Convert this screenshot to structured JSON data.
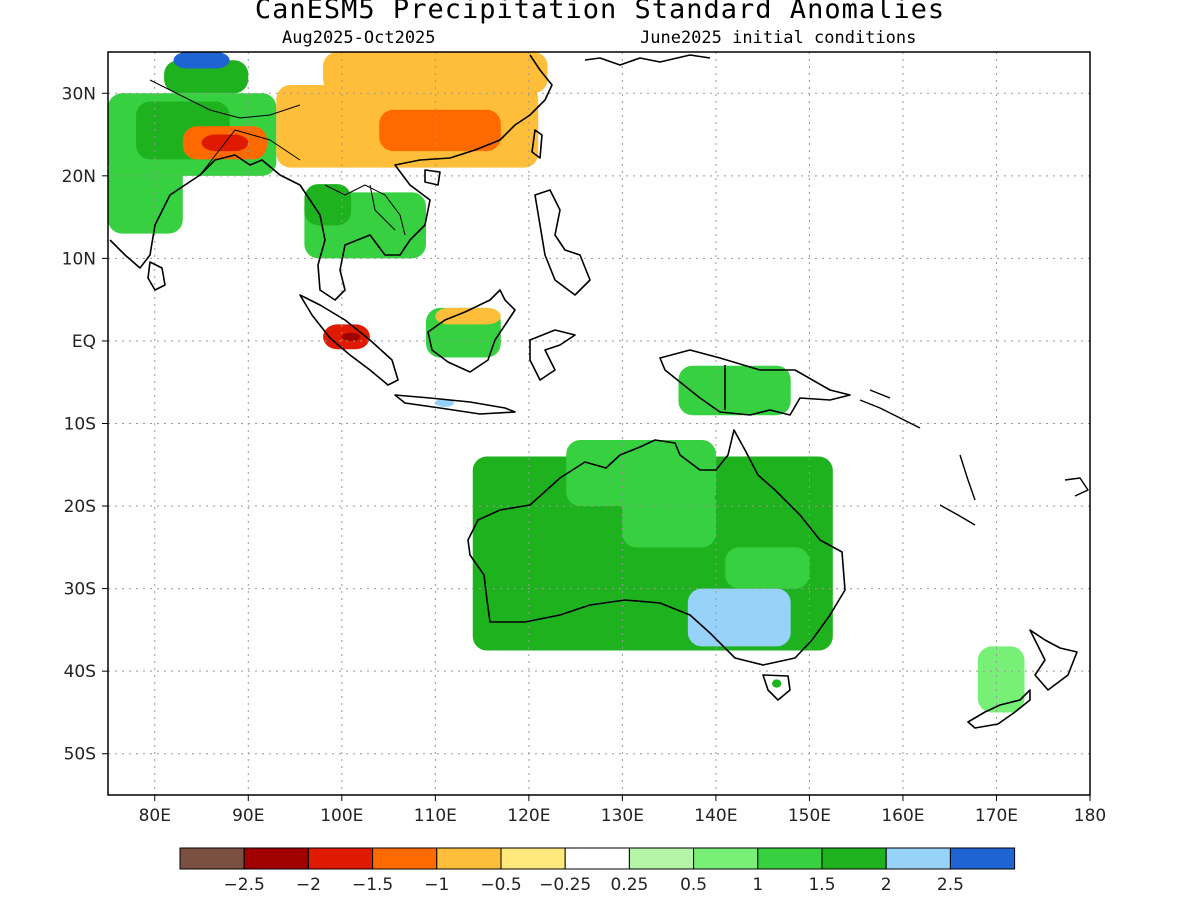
{
  "header": {
    "title": "CanESM5 Precipitation Standard Anomalies",
    "period": "Aug2025-Oct2025",
    "init": "June2025 initial conditions"
  },
  "axes": {
    "lon_range": [
      75,
      180
    ],
    "lat_range": [
      -55,
      35
    ],
    "lon_ticks": [
      80,
      90,
      100,
      110,
      120,
      130,
      140,
      150,
      160,
      170,
      180
    ],
    "lon_labels": [
      "80E",
      "90E",
      "100E",
      "110E",
      "120E",
      "130E",
      "140E",
      "150E",
      "160E",
      "170E",
      "180"
    ],
    "lat_ticks": [
      30,
      20,
      10,
      0,
      -10,
      -20,
      -30,
      -40,
      -50
    ],
    "lat_labels": [
      "30N",
      "20N",
      "10N",
      "EQ",
      "10S",
      "20S",
      "30S",
      "40S",
      "50S"
    ]
  },
  "legend": {
    "colors": [
      "#7a5043",
      "#a00000",
      "#e01a00",
      "#ff6a00",
      "#ffbe3a",
      "#ffe97d",
      "#ffffff",
      "#b4f5a7",
      "#78f078",
      "#37d040",
      "#1eb31e",
      "#96d2fa",
      "#1e64d2"
    ],
    "labels": [
      "-2.5",
      "-2",
      "-1.5",
      "-1",
      "-0.5",
      "-0.25",
      "0.25",
      "0.5",
      "1",
      "1.5",
      "2",
      "2.5"
    ]
  },
  "anomaly_regions": [
    {
      "name": "australia",
      "lon": [
        114,
        152.5
      ],
      "lat": [
        -37.5,
        -14
      ],
      "level": "1.5"
    },
    {
      "name": "australia-north",
      "lon": [
        124,
        140
      ],
      "lat": [
        -20,
        -12
      ],
      "level": "1"
    },
    {
      "name": "australia-centre",
      "lon": [
        130,
        140
      ],
      "lat": [
        -25,
        -18
      ],
      "level": "1"
    },
    {
      "name": "australia-se",
      "lon": [
        137,
        148
      ],
      "lat": [
        -37,
        -30
      ],
      "level": "2"
    },
    {
      "name": "australia-east",
      "lon": [
        141,
        150
      ],
      "lat": [
        -30,
        -25
      ],
      "level": "1"
    },
    {
      "name": "india-east",
      "lon": [
        75,
        93
      ],
      "lat": [
        20,
        30
      ],
      "level": "1"
    },
    {
      "name": "india-west",
      "lon": [
        75,
        83
      ],
      "lat": [
        13,
        22
      ],
      "level": "1"
    },
    {
      "name": "india-core",
      "lon": [
        78,
        88
      ],
      "lat": [
        22,
        29
      ],
      "level": "1.5"
    },
    {
      "name": "himalaya",
      "lon": [
        81,
        90
      ],
      "lat": [
        30,
        34
      ],
      "level": "1.5"
    },
    {
      "name": "tibet-west",
      "lon": [
        82,
        88
      ],
      "lat": [
        33,
        35
      ],
      "level": "2.5"
    },
    {
      "name": "bangladesh",
      "lon": [
        83,
        92
      ],
      "lat": [
        22,
        26
      ],
      "level": "-1"
    },
    {
      "name": "bangladesh-core",
      "lon": [
        85,
        90
      ],
      "lat": [
        23,
        25
      ],
      "level": "-1.5"
    },
    {
      "name": "china-south",
      "lon": [
        93,
        121
      ],
      "lat": [
        21,
        31
      ],
      "level": "-0.5"
    },
    {
      "name": "china-north",
      "lon": [
        98,
        122
      ],
      "lat": [
        30,
        35
      ],
      "level": "-0.5"
    },
    {
      "name": "china-core",
      "lon": [
        104,
        117
      ],
      "lat": [
        23,
        28
      ],
      "level": "-1"
    },
    {
      "name": "indochina",
      "lon": [
        96,
        109
      ],
      "lat": [
        10,
        18
      ],
      "level": "1"
    },
    {
      "name": "myanmar-south",
      "lon": [
        96,
        101
      ],
      "lat": [
        14,
        19
      ],
      "level": "1.5"
    },
    {
      "name": "borneo",
      "lon": [
        109,
        117
      ],
      "lat": [
        -2,
        4
      ],
      "level": "1"
    },
    {
      "name": "borneo-north",
      "lon": [
        110,
        117
      ],
      "lat": [
        2,
        4
      ],
      "level": "-0.5"
    },
    {
      "name": "sumatra",
      "lon": [
        98,
        103
      ],
      "lat": [
        -1,
        2
      ],
      "level": "-1.5"
    },
    {
      "name": "sumatra-core",
      "lon": [
        100,
        102
      ],
      "lat": [
        0,
        1
      ],
      "level": "-2"
    },
    {
      "name": "new-guinea",
      "lon": [
        136,
        148
      ],
      "lat": [
        -9,
        -3
      ],
      "level": "1"
    },
    {
      "name": "java",
      "lon": [
        110,
        112
      ],
      "lat": [
        -8,
        -7
      ],
      "level": "2"
    },
    {
      "name": "tasmania",
      "lon": [
        146,
        147
      ],
      "lat": [
        -42,
        -41
      ],
      "level": "1.5"
    },
    {
      "name": "new-zealand",
      "lon": [
        168,
        173
      ],
      "lat": [
        -45,
        -37
      ],
      "level": "0.5"
    }
  ]
}
